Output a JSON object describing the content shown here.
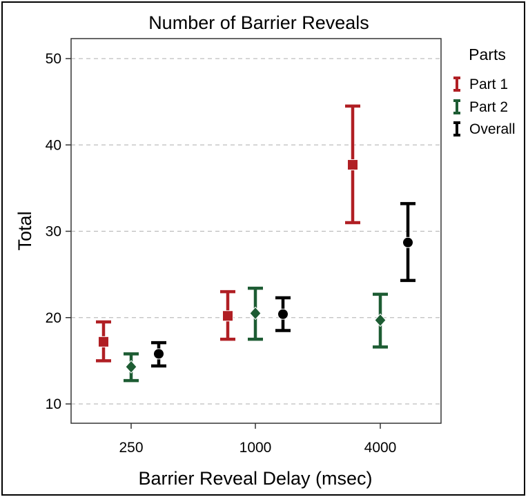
{
  "chart_data": {
    "type": "errorbar",
    "title": "Number of Barrier Reveals",
    "xlabel": "Barrier Reveal Delay (msec)",
    "ylabel": "Total",
    "categories": [
      "250",
      "1000",
      "4000"
    ],
    "ylim": [
      8,
      52
    ],
    "yticks": [
      10,
      20,
      30,
      40,
      50
    ],
    "grid": "horizontal-dashed",
    "legend": {
      "title": "Parts",
      "placement": "right",
      "entries": [
        "Part 1",
        "Part 2",
        "Overall"
      ]
    },
    "series": [
      {
        "name": "Part 1",
        "color": "#b01f24",
        "marker": "square",
        "means": [
          17.2,
          20.2,
          37.7
        ],
        "lower": [
          15.0,
          17.5,
          31.0
        ],
        "upper": [
          19.5,
          23.0,
          44.5
        ]
      },
      {
        "name": "Part 2",
        "color": "#1d5c33",
        "marker": "diamond",
        "means": [
          14.3,
          20.5,
          19.7
        ],
        "lower": [
          12.7,
          17.5,
          16.6
        ],
        "upper": [
          15.8,
          23.4,
          22.7
        ]
      },
      {
        "name": "Overall",
        "color": "#000000",
        "marker": "circle",
        "means": [
          15.8,
          20.4,
          28.7
        ],
        "lower": [
          14.4,
          18.5,
          24.3
        ],
        "upper": [
          17.1,
          22.3,
          33.2
        ]
      }
    ]
  }
}
